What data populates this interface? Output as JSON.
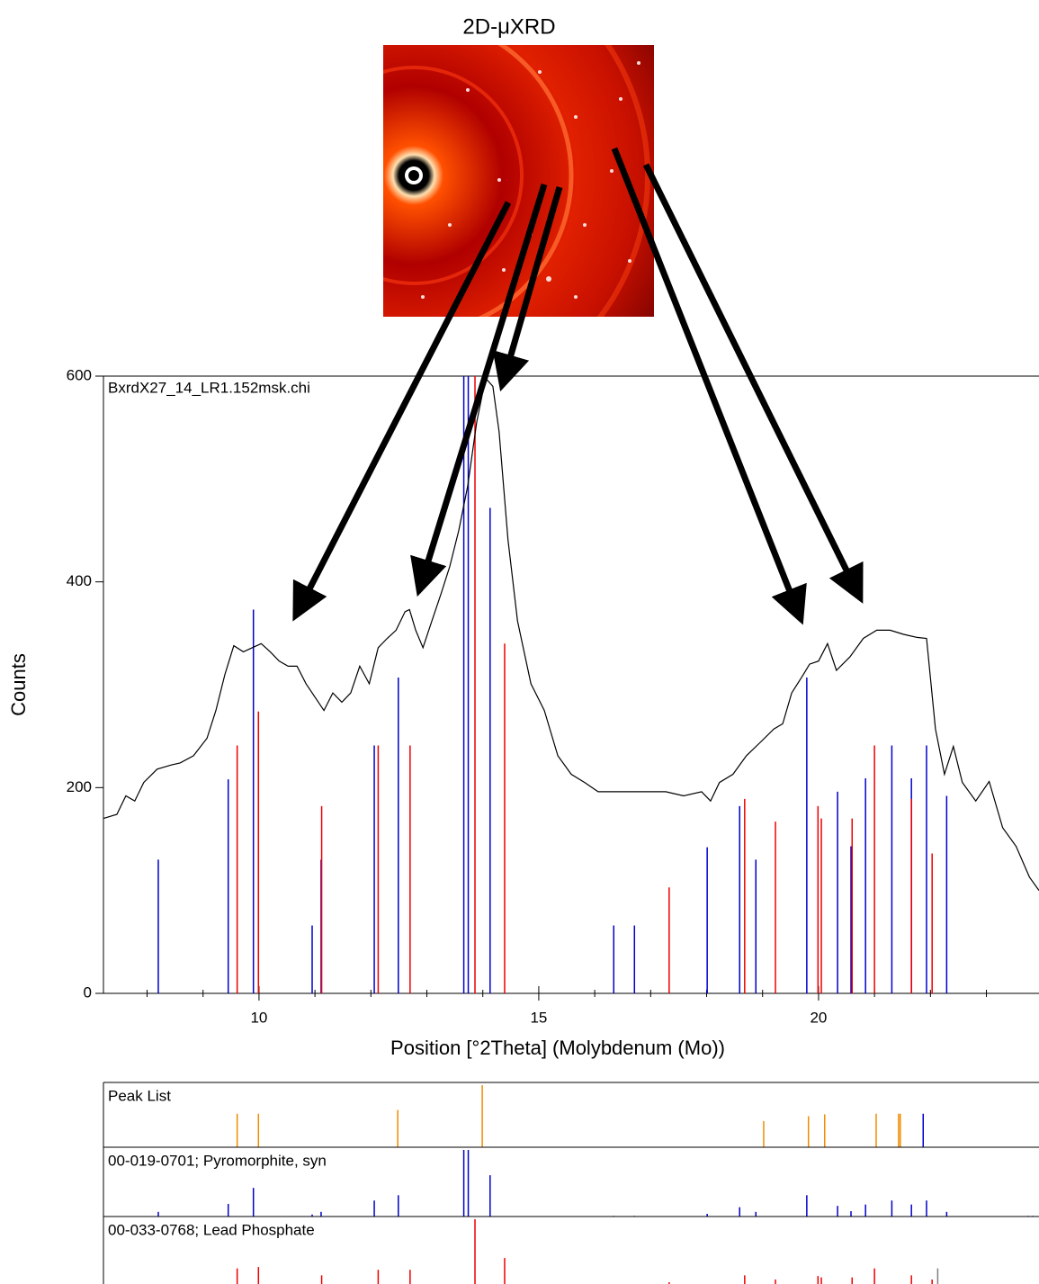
{
  "header": {
    "title": "2D-μXRD"
  },
  "chart_data": [
    {
      "type": "line",
      "label": "BxrdX27_14_LR1.152msk.chi",
      "x_label": "Position [°2Theta] (Molybdenum (Mo))",
      "y_label": "Counts",
      "xlim": [
        7.22,
        23.94
      ],
      "ylim": [
        0,
        600
      ],
      "xticks": [
        10,
        15,
        20
      ],
      "yticks": [
        0,
        200,
        400,
        600
      ],
      "xminorticks": [
        8,
        9,
        11,
        12,
        13,
        14,
        16,
        17,
        18,
        19,
        21,
        22,
        23
      ],
      "series": [
        {
          "color": "#000000",
          "x": [
            7.22,
            7.46,
            7.62,
            7.78,
            7.94,
            8.18,
            8.43,
            8.59,
            8.83,
            9.07,
            9.23,
            9.39,
            9.55,
            9.72,
            9.88,
            10.04,
            10.2,
            10.36,
            10.52,
            10.68,
            10.84,
            11.0,
            11.16,
            11.32,
            11.48,
            11.64,
            11.8,
            11.97,
            12.13,
            12.29,
            12.45,
            12.61,
            12.69,
            12.8,
            12.93,
            13.09,
            13.25,
            13.41,
            13.57,
            13.73,
            13.89,
            14.05,
            14.18,
            14.29,
            14.45,
            14.62,
            14.86,
            15.1,
            15.34,
            15.58,
            15.82,
            16.06,
            16.3,
            16.63,
            16.95,
            17.27,
            17.59,
            17.91,
            18.07,
            18.23,
            18.47,
            18.71,
            18.96,
            19.2,
            19.36,
            19.52,
            19.73,
            19.84,
            20.0,
            20.16,
            20.32,
            20.56,
            20.8,
            21.04,
            21.28,
            21.52,
            21.76,
            21.93,
            22.09,
            22.25,
            22.41,
            22.57,
            22.81,
            23.05,
            23.29,
            23.53,
            23.77,
            23.94
          ],
          "values": [
            170,
            174,
            192,
            187,
            205,
            218,
            222,
            224,
            231,
            248,
            275,
            310,
            338,
            332,
            336,
            340,
            332,
            323,
            318,
            318,
            301,
            288,
            275,
            292,
            283,
            292,
            318,
            301,
            336,
            345,
            353,
            371,
            373,
            353,
            336,
            362,
            388,
            415,
            450,
            493,
            555,
            598,
            590,
            546,
            441,
            362,
            301,
            275,
            231,
            213,
            205,
            196,
            196,
            196,
            196,
            196,
            192,
            196,
            187,
            205,
            213,
            231,
            244,
            257,
            262,
            292,
            310,
            320,
            323,
            340,
            314,
            327,
            345,
            353,
            353,
            349,
            346,
            345,
            257,
            213,
            240,
            205,
            187,
            206,
            161,
            143,
            113,
            100
          ]
        }
      ],
      "sticks": [
        {
          "color": "#0000cc",
          "x": [
            8.2,
            9.45,
            9.9,
            10.95,
            11.11,
            12.06,
            12.49,
            13.66,
            13.74,
            14.13,
            16.34,
            16.71,
            18.01,
            18.59,
            18.88,
            19.79,
            20.34,
            20.58,
            20.84,
            21.31,
            21.66,
            21.93,
            22.29
          ],
          "values": [
            130,
            208,
            373,
            66,
            130,
            241,
            307,
            600,
            600,
            472,
            66,
            66,
            142,
            182,
            130,
            307,
            196,
            143,
            209,
            241,
            209,
            241,
            192
          ]
        },
        {
          "color": "#ee0000",
          "x": [
            9.61,
            9.99,
            11.12,
            12.13,
            12.7,
            13.86,
            14.39,
            17.33,
            18.68,
            19.23,
            19.99,
            20.05,
            20.6,
            21.0,
            21.66,
            22.03
          ],
          "values": [
            241,
            274,
            182,
            241,
            241,
            600,
            340,
            103,
            189,
            167,
            182,
            170,
            170,
            241,
            189,
            136
          ]
        }
      ]
    },
    {
      "type": "stick",
      "title": "Peak List",
      "title_color": "#000000",
      "xlim": [
        7.22,
        23.94
      ],
      "ylim": [
        0,
        100
      ],
      "x": [
        9.61,
        9.99,
        12.48,
        13.99,
        19.02,
        19.82,
        20.11,
        21.03,
        21.43,
        21.46,
        21.87
      ],
      "values": [
        54,
        54,
        60,
        100,
        42,
        50,
        53,
        54,
        54,
        54,
        54
      ],
      "colors": [
        "#f08c00",
        "#f08c00",
        "#f08c00",
        "#f08c00",
        "#f08c00",
        "#f08c00",
        "#f08c00",
        "#f08c00",
        "#f08c00",
        "#f08c00",
        "#0000cc"
      ]
    },
    {
      "type": "stick",
      "title": "00-019-0701; Pyromorphite, syn",
      "title_color": "#0000ee",
      "xlim": [
        7.22,
        23.94
      ],
      "ylim": [
        0,
        100
      ],
      "color": "#0000cc",
      "x": [
        8.2,
        9.45,
        9.9,
        10.95,
        11.11,
        12.06,
        12.49,
        13.66,
        13.74,
        14.13,
        16.34,
        16.71,
        18.01,
        18.59,
        18.88,
        19.79,
        20.34,
        20.58,
        20.84,
        21.31,
        21.66,
        21.93,
        22.29,
        23.75,
        23.83
      ],
      "values": [
        7,
        19,
        43,
        3,
        7,
        24,
        32,
        100,
        100,
        62,
        1,
        1,
        4,
        14,
        7,
        32,
        16,
        8,
        18,
        24,
        18,
        24,
        7,
        1,
        1
      ]
    },
    {
      "type": "stick",
      "title": "00-033-0768; Lead Phosphate",
      "title_color": "#ee0000",
      "xlim": [
        7.22,
        23.94
      ],
      "ylim": [
        0,
        100
      ],
      "color": "#ee0000",
      "x": [
        9.61,
        9.99,
        11.12,
        12.13,
        12.7,
        13.86,
        14.39,
        17.33,
        18.68,
        19.23,
        19.99,
        20.05,
        20.6,
        21.0,
        21.66,
        22.03,
        22.13
      ],
      "values": [
        29,
        31,
        19,
        27,
        27,
        100,
        44,
        9,
        19,
        13,
        18,
        16,
        16,
        29,
        19,
        13,
        29
      ],
      "colors": [
        "#ee0000",
        "#ee0000",
        "#ee0000",
        "#ee0000",
        "#ee0000",
        "#ee0000",
        "#ee0000",
        "#ee0000",
        "#ee0000",
        "#ee0000",
        "#ee0000",
        "#ee0000",
        "#ee0000",
        "#ee0000",
        "#ee0000",
        "#ee0000",
        "#808080"
      ]
    }
  ]
}
